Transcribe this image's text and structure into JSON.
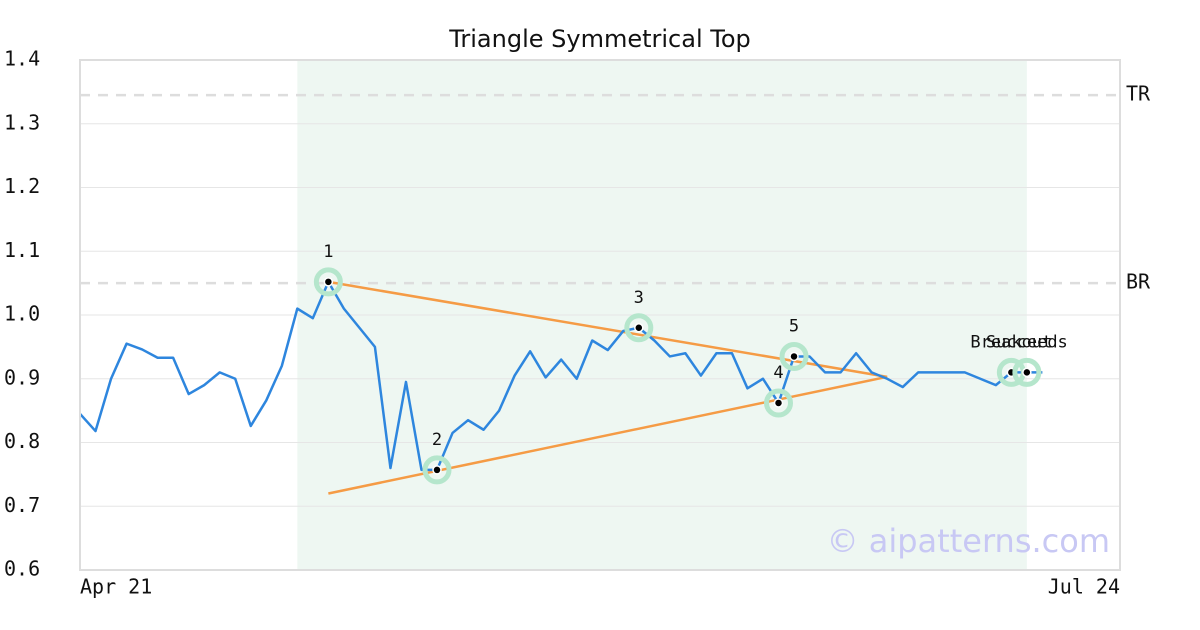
{
  "chart_data": {
    "type": "line",
    "title": "Triangle Symmetrical Top",
    "x": [
      0,
      1,
      2,
      3,
      4,
      5,
      6,
      7,
      8,
      9,
      10,
      11,
      12,
      13,
      14,
      15,
      16,
      17,
      18,
      19,
      20,
      21,
      22,
      23,
      24,
      25,
      26,
      27,
      28,
      29,
      30,
      31,
      32,
      33,
      34,
      35,
      36,
      37,
      38,
      39,
      40,
      41,
      42,
      43,
      44,
      45,
      46,
      47,
      48,
      49,
      50,
      51,
      52,
      53,
      54,
      55,
      56,
      57,
      58,
      59,
      60,
      61,
      62
    ],
    "series": [
      {
        "color": "#2e86de",
        "values": [
          0.845,
          0.818,
          0.9,
          0.955,
          0.946,
          0.933,
          0.933,
          0.876,
          0.89,
          0.91,
          0.9,
          0.826,
          0.866,
          0.92,
          1.01,
          0.995,
          1.052,
          1.01,
          0.98,
          0.95,
          0.76,
          0.895,
          0.757,
          0.757,
          0.815,
          0.835,
          0.82,
          0.85,
          0.905,
          0.943,
          0.902,
          0.93,
          0.9,
          0.96,
          0.945,
          0.975,
          0.98,
          0.96,
          0.935,
          0.94,
          0.905,
          0.94,
          0.94,
          0.885,
          0.9,
          0.862,
          0.935,
          0.935,
          0.91,
          0.91,
          0.94,
          0.91,
          0.9,
          0.887,
          0.91,
          0.91,
          0.91,
          0.91,
          0.9,
          0.89,
          0.91,
          0.91,
          0.91
        ]
      }
    ],
    "xlim": [
      0,
      67
    ],
    "xticks": [
      {
        "value": 0,
        "label": "Apr 21"
      },
      {
        "value": 67,
        "label": "Jul 24"
      }
    ],
    "ylim": [
      0.6,
      1.4
    ],
    "yticks": [
      0.6,
      0.7,
      0.8,
      0.9,
      {
        "value": 1,
        "label": "1.0"
      },
      1.1,
      1.2,
      1.3,
      1.4
    ],
    "grid": true,
    "levels": [
      {
        "label": "TR",
        "value": 1.345
      },
      {
        "label": "BR",
        "value": 1.05
      }
    ],
    "pattern_region": [
      14,
      61
    ],
    "trendlines": [
      {
        "x": [
          16,
          52
        ],
        "y": [
          1.052,
          0.903
        ],
        "color": "#f59b45"
      },
      {
        "x": [
          16,
          52
        ],
        "y": [
          0.72,
          0.903
        ],
        "color": "#f59b45"
      }
    ],
    "markers": [
      {
        "label": "1",
        "x": 16,
        "y": 1.052
      },
      {
        "label": "2",
        "x": 23,
        "y": 0.757
      },
      {
        "label": "3",
        "x": 36,
        "y": 0.98
      },
      {
        "label": "4",
        "x": 45,
        "y": 0.862
      },
      {
        "label": "5",
        "x": 46,
        "y": 0.935
      },
      {
        "label": "Breakout",
        "x": 60,
        "y": 0.91
      },
      {
        "label": "Succeeds",
        "x": 61,
        "y": 0.91
      }
    ],
    "watermark": "© aipatterns.com"
  }
}
